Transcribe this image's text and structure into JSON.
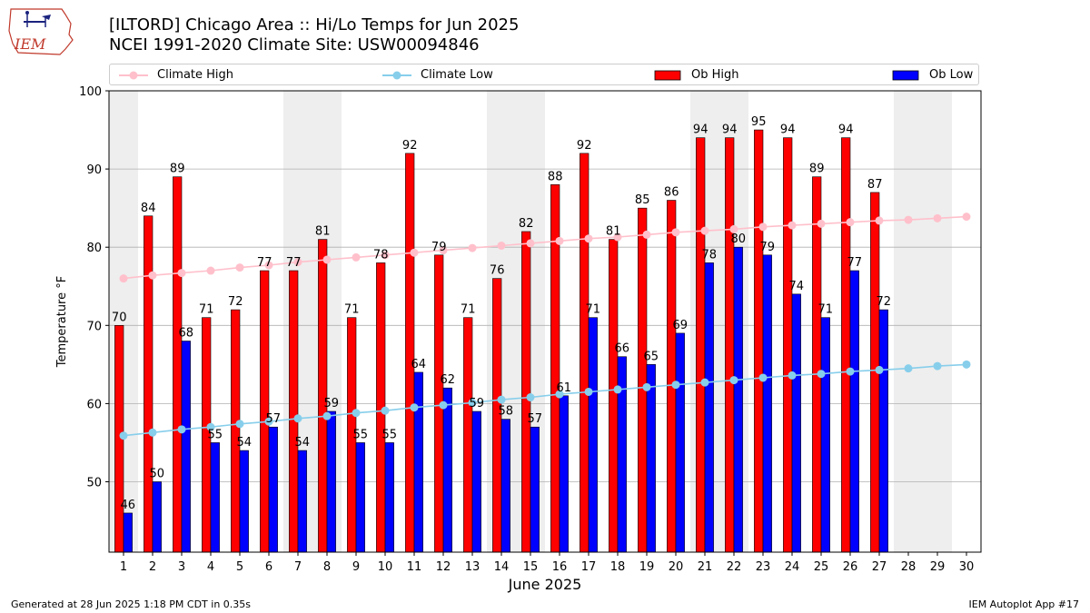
{
  "header": {
    "title_line1": "[ILTORD] Chicago Area :: Hi/Lo Temps for Jun 2025",
    "title_line2": "NCEI 1991-2020 Climate Site: USW00094846"
  },
  "logo": {
    "text": "IEM"
  },
  "footer": {
    "generated": "Generated at 28 Jun 2025 1:18 PM CDT in 0.35s",
    "app": "IEM Autoplot App #17"
  },
  "colors": {
    "ob_high": "#ff0000",
    "ob_low": "#0000ff",
    "climate_high": "#ffc0cb",
    "climate_low": "#87ceeb",
    "weekend_band": "#eeeeee",
    "grid": "#b0b0b0"
  },
  "chart_data": {
    "type": "bar",
    "xlabel": "June 2025",
    "ylabel": "Temperature °F",
    "ylim": [
      41,
      100
    ],
    "xlim": [
      0.5,
      30.5
    ],
    "yticks": [
      50,
      60,
      70,
      80,
      90,
      100
    ],
    "grid": "horizontal",
    "legend_position": "top",
    "categories": [
      1,
      2,
      3,
      4,
      5,
      6,
      7,
      8,
      9,
      10,
      11,
      12,
      13,
      14,
      15,
      16,
      17,
      18,
      19,
      20,
      21,
      22,
      23,
      24,
      25,
      26,
      27,
      28,
      29,
      30
    ],
    "weekend_days": [
      1,
      7,
      8,
      14,
      15,
      21,
      22,
      28,
      29
    ],
    "series": [
      {
        "name": "Climate High",
        "kind": "line",
        "values": [
          76,
          76.4,
          76.7,
          77,
          77.4,
          77.7,
          78.1,
          78.4,
          78.7,
          79,
          79.3,
          79.6,
          79.9,
          80.2,
          80.5,
          80.8,
          81.1,
          81.3,
          81.6,
          81.9,
          82.1,
          82.3,
          82.6,
          82.8,
          83,
          83.2,
          83.4,
          83.5,
          83.7,
          83.9
        ]
      },
      {
        "name": "Climate Low",
        "kind": "line",
        "values": [
          55.9,
          56.3,
          56.7,
          57,
          57.4,
          57.7,
          58.1,
          58.4,
          58.8,
          59.1,
          59.5,
          59.8,
          60.1,
          60.5,
          60.8,
          61.2,
          61.5,
          61.8,
          62.1,
          62.4,
          62.7,
          63,
          63.3,
          63.6,
          63.8,
          64.1,
          64.3,
          64.5,
          64.8,
          65
        ]
      },
      {
        "name": "Ob High",
        "kind": "bar",
        "values": [
          70,
          84,
          89,
          71,
          72,
          77,
          77,
          81,
          71,
          78,
          92,
          79,
          71,
          76,
          82,
          88,
          92,
          81,
          85,
          86,
          94,
          94,
          95,
          94,
          89,
          94,
          87,
          null,
          null,
          null
        ]
      },
      {
        "name": "Ob Low",
        "kind": "bar",
        "values": [
          46,
          50,
          68,
          55,
          54,
          57,
          54,
          59,
          55,
          55,
          64,
          62,
          59,
          58,
          57,
          61,
          71,
          66,
          65,
          69,
          78,
          80,
          79,
          74,
          71,
          77,
          72,
          null,
          null,
          null
        ]
      }
    ]
  }
}
